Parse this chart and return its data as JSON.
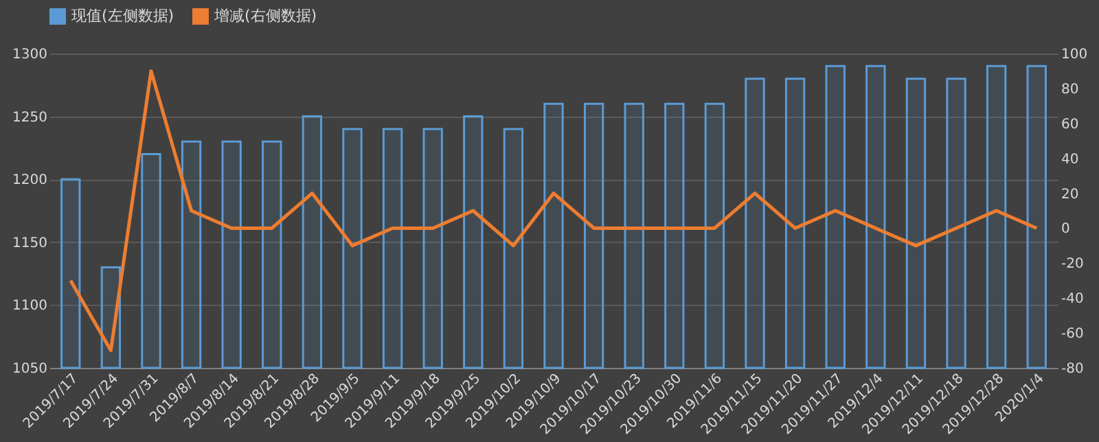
{
  "chart_data": {
    "type": "bar",
    "categories": [
      "2019/7/17",
      "2019/7/24",
      "2019/7/31",
      "2019/8/7",
      "2019/8/14",
      "2019/8/21",
      "2019/8/28",
      "2019/9/5",
      "2019/9/11",
      "2019/9/18",
      "2019/9/25",
      "2019/10/2",
      "2019/10/9",
      "2019/10/17",
      "2019/10/23",
      "2019/10/30",
      "2019/11/6",
      "2019/11/15",
      "2019/11/20",
      "2019/11/27",
      "2019/12/4",
      "2019/12/11",
      "2019/12/18",
      "2019/12/28",
      "2020/1/4"
    ],
    "series": [
      {
        "name": "现值(左侧数据)",
        "color": "#5b9bd5",
        "values": [
          1200,
          1130,
          1220,
          1230,
          1230,
          1230,
          1250,
          1240,
          1240,
          1240,
          1250,
          1240,
          1260,
          1260,
          1260,
          1260,
          1260,
          1280,
          1280,
          1290,
          1290,
          1280,
          1280,
          1290,
          1290
        ]
      },
      {
        "name": "增减(右侧数据)",
        "color": "#ed7d31",
        "type": "line",
        "axis": "y2",
        "values": [
          -30,
          -70,
          90,
          10,
          0,
          0,
          20,
          -10,
          0,
          0,
          10,
          -10,
          20,
          0,
          0,
          0,
          0,
          20,
          0,
          10,
          0,
          -10,
          0,
          10,
          0
        ]
      }
    ],
    "ylim": [
      1050,
      1300
    ],
    "yticks": [
      1050,
      1100,
      1150,
      1200,
      1250,
      1300
    ],
    "y2lim": [
      -80,
      100
    ],
    "y2ticks": [
      -80,
      -60,
      -40,
      -20,
      0,
      20,
      40,
      60,
      80,
      100
    ],
    "grid": "y",
    "legend": "top",
    "marker": "none",
    "line_style": "solid"
  }
}
